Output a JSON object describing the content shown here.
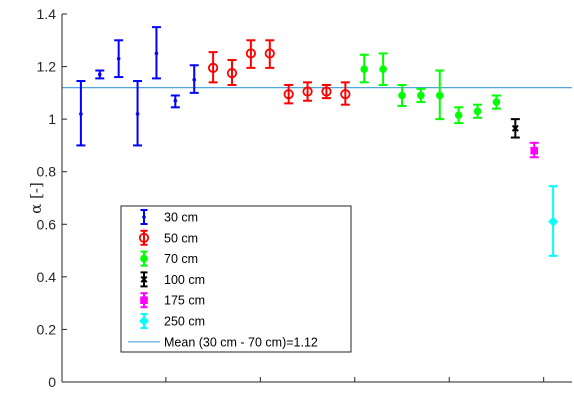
{
  "chart_data": {
    "type": "scatter",
    "title": "",
    "xlabel": "",
    "ylabel": "α [-]",
    "ylim": [
      0,
      1.4
    ],
    "yticks": [
      "0",
      "0.2",
      "0.4",
      "0.6",
      "0.8",
      "1",
      "1.2",
      "1.4"
    ],
    "grid": false,
    "legend_position": "lower-left",
    "series": [
      {
        "name": "30 cm",
        "color": "#0000ff",
        "marker": "point",
        "points": [
          {
            "x": 1,
            "y": 1.02,
            "lo": 0.9,
            "hi": 1.145
          },
          {
            "x": 2,
            "y": 1.17,
            "lo": 1.155,
            "hi": 1.185
          },
          {
            "x": 3,
            "y": 1.23,
            "lo": 1.16,
            "hi": 1.3
          },
          {
            "x": 4,
            "y": 1.02,
            "lo": 0.9,
            "hi": 1.145
          },
          {
            "x": 5,
            "y": 1.25,
            "lo": 1.155,
            "hi": 1.35
          },
          {
            "x": 6,
            "y": 1.07,
            "lo": 1.045,
            "hi": 1.09
          },
          {
            "x": 7,
            "y": 1.15,
            "lo": 1.1,
            "hi": 1.205
          }
        ]
      },
      {
        "name": "50 cm",
        "color": "#ff0000",
        "marker": "circle",
        "points": [
          {
            "x": 8,
            "y": 1.195,
            "lo": 1.14,
            "hi": 1.255
          },
          {
            "x": 9,
            "y": 1.175,
            "lo": 1.13,
            "hi": 1.225
          },
          {
            "x": 10,
            "y": 1.25,
            "lo": 1.195,
            "hi": 1.3
          },
          {
            "x": 11,
            "y": 1.25,
            "lo": 1.195,
            "hi": 1.3
          },
          {
            "x": 12,
            "y": 1.095,
            "lo": 1.06,
            "hi": 1.13
          },
          {
            "x": 13,
            "y": 1.105,
            "lo": 1.07,
            "hi": 1.14
          },
          {
            "x": 14,
            "y": 1.105,
            "lo": 1.08,
            "hi": 1.13
          },
          {
            "x": 15,
            "y": 1.095,
            "lo": 1.055,
            "hi": 1.14
          }
        ]
      },
      {
        "name": "70 cm",
        "color": "#00ff00",
        "marker": "filled-circle",
        "points": [
          {
            "x": 16,
            "y": 1.19,
            "lo": 1.14,
            "hi": 1.245
          },
          {
            "x": 17,
            "y": 1.19,
            "lo": 1.13,
            "hi": 1.25
          },
          {
            "x": 18,
            "y": 1.09,
            "lo": 1.05,
            "hi": 1.13
          },
          {
            "x": 19,
            "y": 1.09,
            "lo": 1.065,
            "hi": 1.115
          },
          {
            "x": 20,
            "y": 1.09,
            "lo": 1.0,
            "hi": 1.185
          },
          {
            "x": 21,
            "y": 1.015,
            "lo": 0.985,
            "hi": 1.045
          },
          {
            "x": 22,
            "y": 1.03,
            "lo": 1.005,
            "hi": 1.055
          },
          {
            "x": 23,
            "y": 1.065,
            "lo": 1.04,
            "hi": 1.09
          }
        ]
      },
      {
        "name": "100 cm",
        "color": "#000000",
        "marker": "x",
        "points": [
          {
            "x": 24,
            "y": 0.965,
            "lo": 0.93,
            "hi": 1.0
          }
        ]
      },
      {
        "name": "175 cm",
        "color": "#ff00ff",
        "marker": "square",
        "points": [
          {
            "x": 25,
            "y": 0.88,
            "lo": 0.855,
            "hi": 0.91
          }
        ]
      },
      {
        "name": "250 cm",
        "color": "#00ffff",
        "marker": "diamond",
        "points": [
          {
            "x": 26,
            "y": 0.61,
            "lo": 0.48,
            "hi": 0.745
          }
        ]
      }
    ],
    "reference_line": {
      "name": "Mean (30 cm - 70 cm)=1.12",
      "y": 1.12,
      "color": "#4fa8d8"
    }
  }
}
